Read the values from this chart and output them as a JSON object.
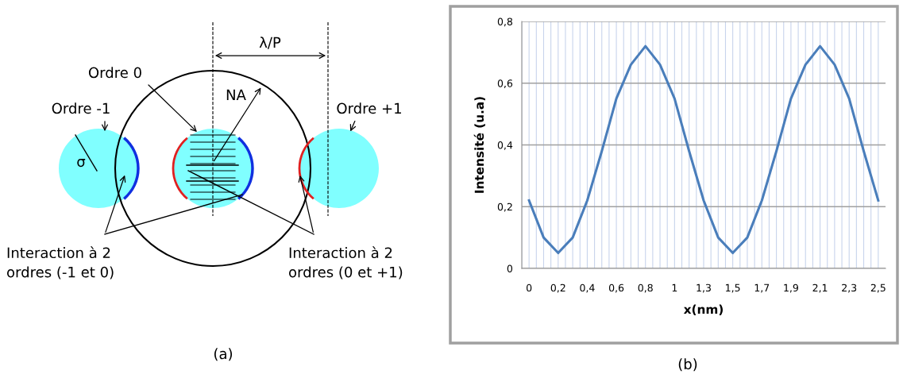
{
  "chart_data": [
    {
      "type": "other",
      "annotations": [
        "λ/P",
        "Ordre 0",
        "NA",
        "Ordre -1",
        "Ordre +1",
        "σ",
        "Interaction à 2\nordres (-1 et 0)",
        "Interaction à 2\nordres (0 et +1)",
        "(a)"
      ]
    },
    {
      "type": "line",
      "xlabel": "x(nm)",
      "ylabel": "Intensité (u.a)",
      "categories": [
        "0",
        null,
        "0,2",
        null,
        "0,4",
        null,
        "0,6",
        null,
        "0,8",
        null,
        "1",
        null,
        "1,3",
        null,
        "1,5",
        null,
        "1,7",
        null,
        "1,9",
        null,
        "2,1",
        null,
        "2,3",
        null,
        "2,5"
      ],
      "series": [
        {
          "color": "#4a7ebb",
          "values": [
            0.22,
            0.1,
            0.05,
            0.1,
            0.22,
            0.38,
            0.55,
            0.66,
            0.72,
            0.66,
            0.55,
            0.38,
            0.22,
            0.1,
            0.05,
            0.1,
            0.22,
            0.38,
            0.55,
            0.66,
            0.72,
            0.66,
            0.55,
            0.38,
            0.22
          ]
        }
      ],
      "ylim": [
        0,
        0.8
      ],
      "yticks": [
        {
          "value": 0,
          "label": "0"
        },
        {
          "value": 0.2,
          "label": "0,2"
        },
        {
          "value": 0.4,
          "label": "0,4"
        },
        {
          "value": 0.6,
          "label": "0,6"
        },
        {
          "value": 0.8,
          "label": "0,8"
        }
      ],
      "grid": true,
      "marker": "none",
      "line_style": "solid",
      "annotations": [
        "(b)"
      ]
    }
  ]
}
